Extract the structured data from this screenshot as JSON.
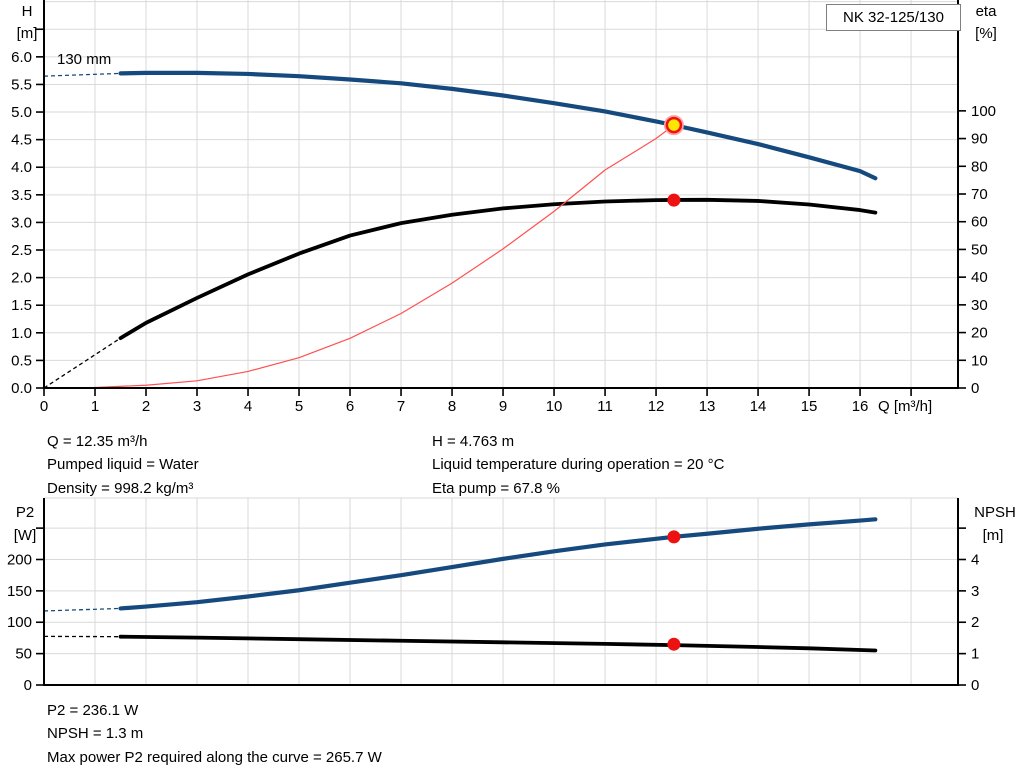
{
  "header": {
    "pump_model": "NK 32-125/130"
  },
  "top_chart": {
    "impeller_label": "130 mm",
    "x_axis": {
      "title": "Q [m³/h]",
      "tick_labels": [
        "0",
        "1",
        "2",
        "3",
        "4",
        "5",
        "6",
        "7",
        "8",
        "9",
        "10",
        "11",
        "12",
        "13",
        "14",
        "15",
        "16"
      ]
    },
    "left_axis": {
      "title_lines": [
        "H",
        "[m]"
      ],
      "tick_labels": [
        "0.0",
        "0.5",
        "1.0",
        "1.5",
        "2.0",
        "2.5",
        "3.0",
        "3.5",
        "4.0",
        "4.5",
        "5.0",
        "5.5",
        "6.0"
      ],
      "unlabeled_ticks": [
        6.5
      ]
    },
    "right_axis": {
      "title_lines": [
        "eta",
        "[%]"
      ],
      "tick_labels": [
        "0",
        "10",
        "20",
        "30",
        "40",
        "50",
        "60",
        "70",
        "80",
        "90",
        "100"
      ],
      "unlabeled_ticks": []
    }
  },
  "bottom_chart": {
    "left_axis": {
      "title_lines": [
        "P2",
        "[W]"
      ],
      "tick_labels": [
        "0",
        "50",
        "100",
        "150",
        "200"
      ],
      "unlabeled_ticks": [
        250
      ]
    },
    "right_axis": {
      "title_lines": [
        "NPSH",
        "[m]"
      ],
      "tick_labels": [
        "0",
        "1",
        "2",
        "3",
        "4"
      ],
      "unlabeled_ticks": [
        5
      ]
    }
  },
  "info_panel_top": {
    "left": [
      "Q = 12.35 m³/h",
      "Pumped liquid = Water",
      "Density = 998.2 kg/m³"
    ],
    "right": [
      "H = 4.763 m",
      "Liquid temperature during operation = 20 °C",
      "Eta pump = 67.8 %"
    ]
  },
  "info_panel_bottom": [
    "P2 = 236.1 W",
    "NPSH = 1.3 m",
    "Max power P2 required along the curve = 265.7 W"
  ],
  "colors": {
    "curve_blue": "#164a7e",
    "curve_black": "#000000",
    "system_red": "#ff5050",
    "marker_red": "#ee1111",
    "marker_yellow": "#ffe600",
    "grid": "#d9d9d9"
  },
  "chart_data": [
    {
      "type": "line",
      "title": "NK 32-125/130",
      "xlabel": "Q [m³/h]",
      "ylabel_left": "H [m]",
      "ylabel_right": "eta [%]",
      "xlim": [
        0,
        17.92
      ],
      "ylim_left": [
        0,
        7.03
      ],
      "ylim_right": [
        0,
        140
      ],
      "grid": true,
      "series": [
        {
          "name": "head-curve-130mm",
          "axis": "left",
          "label": "130 mm",
          "color": "#164a7e",
          "width": 4.2,
          "x": [
            1.5,
            2,
            2.5,
            3,
            4,
            5,
            6,
            7,
            8,
            9,
            10,
            11,
            12,
            12.35,
            13,
            14,
            15,
            16,
            16.3
          ],
          "y": [
            5.7,
            5.71,
            5.71,
            5.71,
            5.69,
            5.65,
            5.59,
            5.52,
            5.42,
            5.3,
            5.16,
            5.01,
            4.83,
            4.763,
            4.63,
            4.42,
            4.18,
            3.93,
            3.8
          ],
          "dashed_lead": {
            "x": [
              0,
              1.5
            ],
            "y": [
              5.65,
              5.7
            ]
          }
        },
        {
          "name": "efficiency-curve",
          "axis": "right",
          "color": "#000000",
          "width": 3.8,
          "x": [
            1.5,
            2,
            3,
            4,
            5,
            6,
            7,
            8,
            9,
            10,
            11,
            12,
            12.35,
            13,
            14,
            15,
            16,
            16.3
          ],
          "y": [
            18,
            23.5,
            32.5,
            41,
            48.5,
            55,
            59.5,
            62.5,
            64.8,
            66.3,
            67.3,
            67.8,
            67.85,
            67.9,
            67.5,
            66.2,
            64.2,
            63.3
          ],
          "dashed_lead": {
            "x": [
              0,
              1.5
            ],
            "y": [
              0,
              18
            ]
          }
        },
        {
          "name": "system-curve",
          "axis": "left",
          "color": "#ff5050",
          "width": 1.2,
          "x": [
            0,
            1,
            2,
            3,
            4,
            5,
            6,
            7,
            8,
            9,
            10,
            11,
            12,
            12.35
          ],
          "y": [
            0,
            0.01,
            0.05,
            0.13,
            0.3,
            0.55,
            0.9,
            1.35,
            1.9,
            2.52,
            3.2,
            3.95,
            4.52,
            4.763
          ]
        }
      ],
      "markers": [
        {
          "name": "duty-point-head",
          "axis": "left",
          "x": 12.35,
          "y": 4.763,
          "style": "yellow-red-ring"
        },
        {
          "name": "duty-point-eta",
          "axis": "right",
          "x": 12.35,
          "y": 67.8,
          "style": "red-dot"
        }
      ]
    },
    {
      "type": "line",
      "title": "",
      "xlabel": "",
      "ylabel_left": "P2 [W]",
      "ylabel_right": "NPSH [m]",
      "xlim": [
        0,
        17.92
      ],
      "ylim_left": [
        0,
        298
      ],
      "ylim_right": [
        0,
        5.96
      ],
      "grid": true,
      "series": [
        {
          "name": "power-curve",
          "axis": "left",
          "color": "#164a7e",
          "width": 4.2,
          "x": [
            1.5,
            2,
            3,
            4,
            5,
            6,
            7,
            8,
            9,
            10,
            11,
            12,
            12.35,
            13,
            14,
            15,
            16,
            16.3
          ],
          "y": [
            122,
            125,
            132,
            141,
            151,
            163,
            175,
            188,
            201,
            213,
            224,
            233,
            236.1,
            241,
            249,
            256,
            262,
            264
          ],
          "dashed_lead": {
            "x": [
              0,
              1.5
            ],
            "y": [
              118,
              122
            ]
          }
        },
        {
          "name": "npsh-curve",
          "axis": "right",
          "color": "#000000",
          "width": 3.8,
          "x": [
            1.5,
            3,
            5,
            7,
            9,
            11,
            12.35,
            14,
            15,
            16.3
          ],
          "y": [
            1.54,
            1.51,
            1.46,
            1.41,
            1.36,
            1.31,
            1.27,
            1.21,
            1.17,
            1.1
          ],
          "dashed_lead": {
            "x": [
              0,
              1.5
            ],
            "y": [
              1.55,
              1.54
            ]
          }
        }
      ],
      "markers": [
        {
          "name": "duty-point-power",
          "axis": "left",
          "x": 12.35,
          "y": 236.1,
          "style": "red-dot"
        },
        {
          "name": "duty-point-npsh",
          "axis": "right",
          "x": 12.35,
          "y": 1.3,
          "style": "red-dot"
        }
      ]
    }
  ]
}
